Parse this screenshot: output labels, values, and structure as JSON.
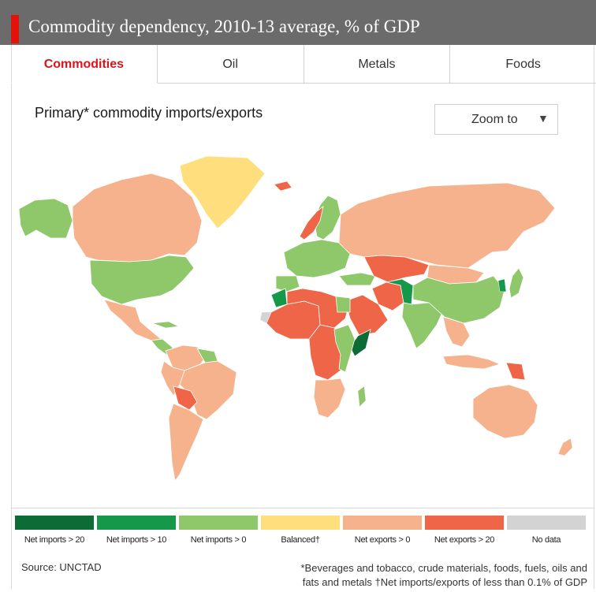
{
  "header": {
    "title": "Commodity dependency, 2010-13 average, % of GDP"
  },
  "tabs": [
    {
      "label": "Commodities",
      "active": true
    },
    {
      "label": "Oil",
      "active": false
    },
    {
      "label": "Metals",
      "active": false
    },
    {
      "label": "Foods",
      "active": false
    }
  ],
  "subtitle": "Primary* commodity imports/exports",
  "zoom": {
    "label": "Zoom to",
    "caret": "▼"
  },
  "colors": {
    "net_imports_gt_20": "#0d6b35",
    "net_imports_gt_10": "#15984a",
    "net_imports_gt_0": "#8ec86a",
    "balanced": "#ffdf7d",
    "net_exports_gt_0": "#f6b28c",
    "net_exports_gt_20": "#ee6647",
    "no_data": "#d3d3d3"
  },
  "legend": [
    {
      "label": "Net imports > 20",
      "color": "#0d6b35"
    },
    {
      "label": "Net imports > 10",
      "color": "#15984a"
    },
    {
      "label": "Net imports > 0",
      "color": "#8ec86a"
    },
    {
      "label": "Balanced†",
      "color": "#ffdf7d"
    },
    {
      "label": "Net exports > 0",
      "color": "#f6b28c"
    },
    {
      "label": "Net exports > 20",
      "color": "#ee6647"
    },
    {
      "label": "No data",
      "color": "#d3d3d3"
    }
  ],
  "source": "Source: UNCTAD",
  "footnote": {
    "line1": "*Beverages and tobacco, crude materials, foods, fuels, oils and",
    "line2": "fats and metals †Net imports/exports of less than 0.1% of GDP"
  }
}
